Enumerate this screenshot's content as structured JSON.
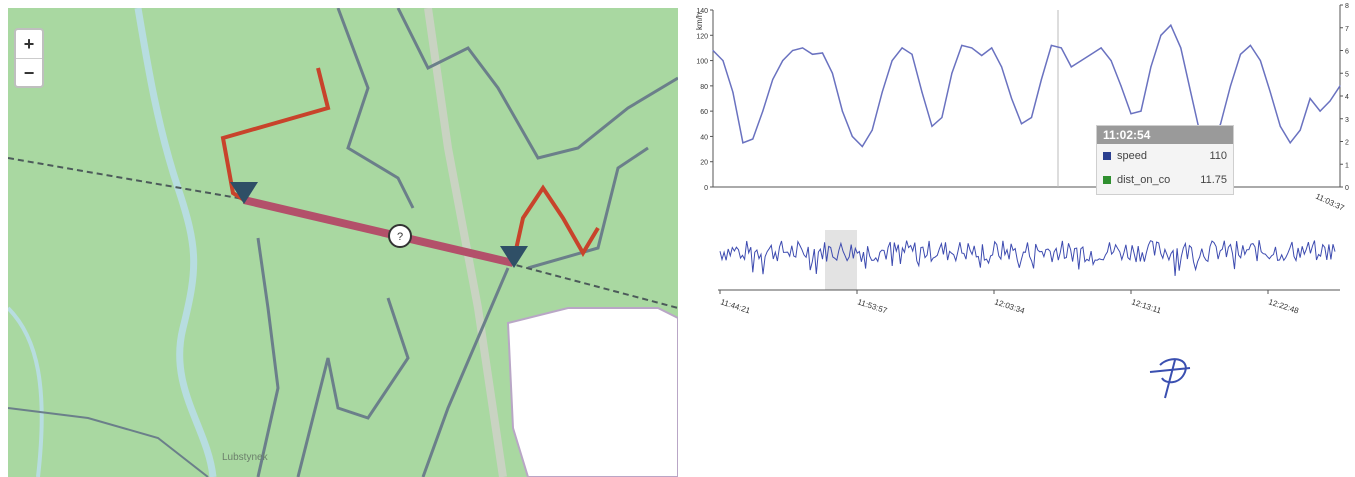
{
  "map": {
    "zoom_in_label": "+",
    "zoom_out_label": "−",
    "marker_label": "?",
    "place_label": "Lubstynek",
    "colors": {
      "forest": "#a9d8a1",
      "road": "#6b7f8a",
      "route": "#c8432b",
      "track": "#b3506a",
      "marker": "#2f4f66"
    }
  },
  "chart": {
    "y_axis_unit": "km/h",
    "y_ticks": [
      "140",
      "120",
      "100",
      "80",
      "60",
      "40",
      "20",
      "0"
    ],
    "right_ticks": [
      "8",
      "7",
      "6",
      "5",
      "4",
      "3",
      "2",
      "1",
      "0"
    ],
    "x_end_label": "11:03:37",
    "tooltip": {
      "time": "11:02:54",
      "rows": [
        {
          "name": "speed",
          "value": "110",
          "color": "#2a3f8f"
        },
        {
          "name": "dist_on_co",
          "value": "11.75",
          "color": "#2f8f2f"
        }
      ]
    },
    "nav_ticks": [
      "11:44:21",
      "11:53:57",
      "12:03:34",
      "12:13:11",
      "12:22:48"
    ]
  },
  "chart_data": {
    "type": "line",
    "ylabel": "km/h",
    "ylim": [
      0,
      140
    ],
    "series": [
      {
        "name": "speed",
        "values": [
          108,
          100,
          75,
          35,
          38,
          60,
          85,
          100,
          108,
          110,
          105,
          106,
          90,
          60,
          40,
          32,
          45,
          75,
          100,
          110,
          105,
          75,
          48,
          55,
          90,
          112,
          110,
          104,
          110,
          95,
          70,
          50,
          55,
          85,
          112,
          110,
          95,
          100,
          105,
          110,
          100,
          80,
          58,
          60,
          95,
          120,
          128,
          110,
          75,
          40,
          32,
          50,
          80,
          105,
          112,
          100,
          75,
          48,
          35,
          45,
          70,
          60,
          68,
          80
        ]
      }
    ]
  }
}
